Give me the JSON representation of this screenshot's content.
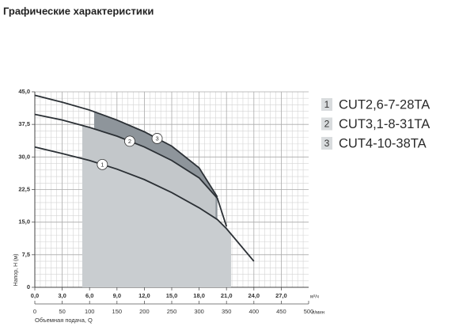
{
  "title": "Графические характеристики",
  "chart_data": {
    "type": "line",
    "x_label": "Объемная подача, Q",
    "y_label": "Напор, H (м)",
    "x_unit": "м³/ч",
    "x2_unit": "л/мин",
    "x": [
      0,
      3,
      6,
      9,
      12,
      15,
      18,
      20,
      21,
      24
    ],
    "series": [
      {
        "name": "CUT2,6-7-28TA",
        "number": "1",
        "color": "#2b3035",
        "shade": "#c9cdd0",
        "range": [
          5.2,
          21.5
        ],
        "values": [
          32.3,
          30.8,
          29.2,
          27.2,
          24.8,
          21.8,
          18.3,
          15.6,
          13.5,
          6.0
        ]
      },
      {
        "name": "CUT3,1-8-31TA",
        "number": "2",
        "color": "#2b3035",
        "shade": "#c3c7ca",
        "range": [
          5.2,
          19.8
        ],
        "values": [
          39.8,
          38.5,
          36.8,
          34.8,
          32.3,
          29.2,
          25.2,
          20.5,
          14.0,
          null
        ]
      },
      {
        "name": "CUT4-10-38TA",
        "number": "3",
        "color": "#2b3035",
        "shade": "#8e959b",
        "range": [
          6.5,
          20.0
        ],
        "values": [
          44.2,
          42.6,
          40.8,
          38.5,
          35.8,
          32.5,
          27.5,
          20.8,
          null,
          null
        ]
      }
    ],
    "xlim": [
      0,
      30
    ],
    "xticks": [
      {
        "value": 0,
        "label": "0,0"
      },
      {
        "value": 3,
        "label": "3,0"
      },
      {
        "value": 6,
        "label": "6,0"
      },
      {
        "value": 9,
        "label": "9,0"
      },
      {
        "value": 12,
        "label": "12,0"
      },
      {
        "value": 15,
        "label": "15,0"
      },
      {
        "value": 18,
        "label": "18,0"
      },
      {
        "value": 21,
        "label": "21,0"
      },
      {
        "value": 24,
        "label": "24,0"
      },
      {
        "value": 27,
        "label": "27,0"
      }
    ],
    "x2lim": [
      0,
      500
    ],
    "x2ticks": [
      0,
      50,
      100,
      150,
      200,
      250,
      300,
      350,
      400,
      450,
      500
    ],
    "ylim": [
      0,
      45
    ],
    "yticks": [
      {
        "value": 0,
        "label": "0"
      },
      {
        "value": 7.5,
        "label": "7,5"
      },
      {
        "value": 15,
        "label": "15,0"
      },
      {
        "value": 22.5,
        "label": "22,5"
      },
      {
        "value": 30,
        "label": "30,0"
      },
      {
        "value": 37.5,
        "label": "37,5"
      },
      {
        "value": 45,
        "label": "45,0"
      }
    ],
    "grid": true
  }
}
